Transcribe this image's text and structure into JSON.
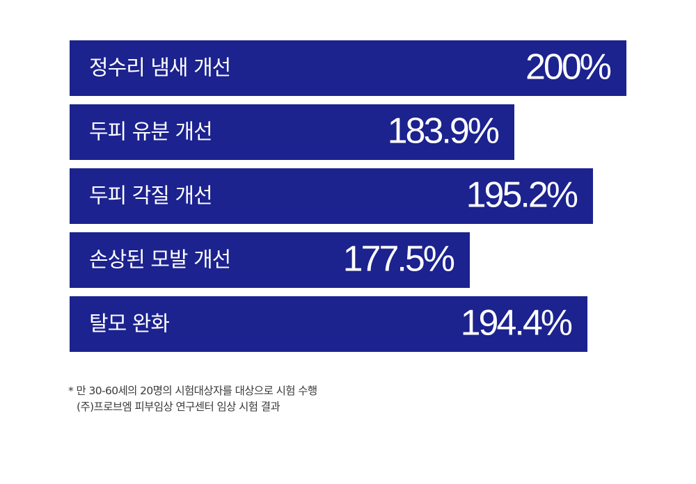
{
  "chart_data": {
    "type": "bar",
    "orientation": "horizontal",
    "categories": [
      "정수리 냄새 개선",
      "두피 유분 개선",
      "두피 각질 개선",
      "손상된 모발 개선",
      "탈모 완화"
    ],
    "values": [
      200,
      183.9,
      195.2,
      177.5,
      194.4
    ],
    "value_labels": [
      "200%",
      "183.9%",
      "195.2%",
      "177.5%",
      "194.4%"
    ],
    "unit": "%",
    "xlim": [
      0,
      200
    ],
    "grid": false,
    "legend": "none",
    "bar_color": "#1c228e",
    "text_color": "#ffffff"
  },
  "footnote": {
    "line1": "* 만 30-60세의 20명의 시험대상자를 대상으로 시험 수행",
    "line2": "(주)프로브엠 피부임상 연구센터 임상 시험 결과"
  }
}
